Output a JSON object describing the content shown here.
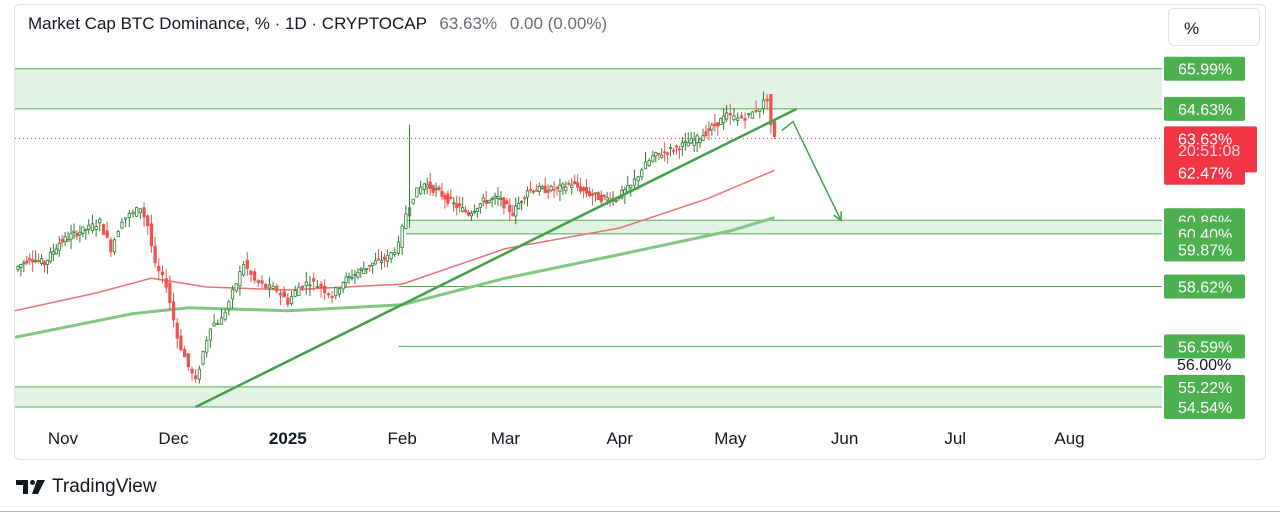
{
  "header": {
    "title": "Market Cap BTC Dominance, % · 1D · CRYPTOCAP",
    "price": "63.63%",
    "change": "0.00 (0.00%)"
  },
  "scale_button": "%",
  "brand": "TradingView",
  "colors": {
    "zone_fill": "#e3f3e3",
    "zone_line": "#4caf50",
    "candle_up": "#26a69a",
    "candle_down": "#ef5350",
    "candle_dark": "#2e7d32",
    "trendline": "#43a047",
    "ma_red": "#e57373",
    "ma_green": "#81c784",
    "label_green": "#4caf50",
    "label_red": "#f23645"
  },
  "chart_data": {
    "type": "line",
    "symbol": "BTC.D",
    "timeframe": "1D",
    "x_ticks": [
      "Nov",
      "Dec",
      "2025",
      "Feb",
      "Mar",
      "Apr",
      "May",
      "Jun",
      "Jul",
      "Aug"
    ],
    "xlim": [
      "2024-10-19",
      "2025-08-25"
    ],
    "ylim": [
      54.1,
      67.3
    ],
    "price_labels": [
      {
        "text": "65.99%",
        "value": 65.99,
        "style": "green"
      },
      {
        "text": "64.63%",
        "value": 64.63,
        "style": "green"
      },
      {
        "text": "63.63%",
        "value": 63.63,
        "style": "red"
      },
      {
        "text": "20:51:08",
        "value": 63.2,
        "style": "red-countdown"
      },
      {
        "text": "62.47%",
        "value": 62.47,
        "style": "red"
      },
      {
        "text": "60.86%",
        "value": 60.86,
        "style": "green"
      },
      {
        "text": "60.40%",
        "value": 60.4,
        "style": "green"
      },
      {
        "text": "59.87%",
        "value": 59.87,
        "style": "green"
      },
      {
        "text": "58.62%",
        "value": 58.62,
        "style": "green"
      },
      {
        "text": "56.59%",
        "value": 56.59,
        "style": "green"
      },
      {
        "text": "56.00%",
        "value": 56.0,
        "style": "plain"
      },
      {
        "text": "55.22%",
        "value": 55.22,
        "style": "green"
      },
      {
        "text": "54.54%",
        "value": 54.54,
        "style": "green"
      }
    ],
    "zones": [
      {
        "from": 64.63,
        "to": 65.99
      },
      {
        "from": 54.54,
        "to": 55.22
      },
      {
        "from": 60.4,
        "to": 60.86,
        "x_start": "2025-02-02"
      }
    ],
    "levels": [
      58.62,
      56.59
    ],
    "current_price": 63.63,
    "btc_dominance": [
      [
        "2024-10-19",
        59.2
      ],
      [
        "2024-10-23",
        59.6
      ],
      [
        "2024-10-27",
        59.4
      ],
      [
        "2024-10-31",
        60.1
      ],
      [
        "2024-11-04",
        60.4
      ],
      [
        "2024-11-08",
        60.6
      ],
      [
        "2024-11-11",
        60.8
      ],
      [
        "2024-11-14",
        59.9
      ],
      [
        "2024-11-17",
        60.9
      ],
      [
        "2024-11-20",
        61.1
      ],
      [
        "2024-11-22",
        61.3
      ],
      [
        "2024-11-24",
        60.7
      ],
      [
        "2024-11-26",
        59.3
      ],
      [
        "2024-11-29",
        58.7
      ],
      [
        "2024-12-02",
        56.9
      ],
      [
        "2024-12-05",
        55.9
      ],
      [
        "2024-12-07",
        55.4
      ],
      [
        "2024-12-09",
        56.4
      ],
      [
        "2024-12-11",
        57.3
      ],
      [
        "2024-12-14",
        57.5
      ],
      [
        "2024-12-17",
        58.4
      ],
      [
        "2024-12-20",
        59.4
      ],
      [
        "2024-12-23",
        58.8
      ],
      [
        "2024-12-26",
        58.6
      ],
      [
        "2024-12-29",
        58.5
      ],
      [
        "2025-01-01",
        58.1
      ],
      [
        "2025-01-04",
        58.6
      ],
      [
        "2025-01-07",
        58.8
      ],
      [
        "2025-01-10",
        58.6
      ],
      [
        "2025-01-13",
        58.3
      ],
      [
        "2025-01-16",
        58.8
      ],
      [
        "2025-01-20",
        59.1
      ],
      [
        "2025-01-24",
        59.4
      ],
      [
        "2025-01-28",
        59.6
      ],
      [
        "2025-01-31",
        60.0
      ],
      [
        "2025-02-02",
        61.1
      ],
      [
        "2025-02-04",
        61.7
      ],
      [
        "2025-02-07",
        62.1
      ],
      [
        "2025-02-11",
        61.8
      ],
      [
        "2025-02-15",
        61.4
      ],
      [
        "2025-02-19",
        61.1
      ],
      [
        "2025-02-23",
        61.5
      ],
      [
        "2025-02-27",
        61.6
      ],
      [
        "2025-03-03",
        61.1
      ],
      [
        "2025-03-07",
        61.9
      ],
      [
        "2025-03-11",
        61.9
      ],
      [
        "2025-03-15",
        61.9
      ],
      [
        "2025-03-19",
        62.1
      ],
      [
        "2025-03-23",
        61.8
      ],
      [
        "2025-03-27",
        61.6
      ],
      [
        "2025-03-31",
        61.6
      ],
      [
        "2025-04-04",
        62.0
      ],
      [
        "2025-04-07",
        62.6
      ],
      [
        "2025-04-10",
        63.0
      ],
      [
        "2025-04-14",
        63.2
      ],
      [
        "2025-04-18",
        63.4
      ],
      [
        "2025-04-22",
        63.6
      ],
      [
        "2025-04-26",
        64.0
      ],
      [
        "2025-04-30",
        64.4
      ],
      [
        "2025-05-03",
        64.3
      ],
      [
        "2025-05-06",
        64.4
      ],
      [
        "2025-05-09",
        64.7
      ],
      [
        "2025-05-11",
        65.0
      ],
      [
        "2025-05-12",
        64.1
      ],
      [
        "2025-05-13",
        63.63
      ]
    ],
    "ma_red": [
      [
        "2024-10-19",
        57.8
      ],
      [
        "2024-11-10",
        58.4
      ],
      [
        "2024-11-25",
        58.9
      ],
      [
        "2024-12-10",
        58.6
      ],
      [
        "2025-01-01",
        58.5
      ],
      [
        "2025-02-01",
        58.7
      ],
      [
        "2025-03-01",
        59.9
      ],
      [
        "2025-04-01",
        60.6
      ],
      [
        "2025-04-25",
        61.6
      ],
      [
        "2025-05-13",
        62.55
      ]
    ],
    "ma_green": [
      [
        "2024-10-19",
        56.9
      ],
      [
        "2024-11-20",
        57.7
      ],
      [
        "2024-12-05",
        57.9
      ],
      [
        "2025-01-01",
        57.8
      ],
      [
        "2025-02-01",
        58.0
      ],
      [
        "2025-03-01",
        58.9
      ],
      [
        "2025-04-01",
        59.7
      ],
      [
        "2025-05-01",
        60.5
      ],
      [
        "2025-05-13",
        60.95
      ]
    ],
    "trendline": [
      [
        "2024-12-07",
        54.54
      ],
      [
        "2025-05-19",
        64.63
      ]
    ],
    "projection": [
      [
        "2025-05-15",
        63.9
      ],
      [
        "2025-05-18",
        64.2
      ],
      [
        "2025-05-31",
        60.86
      ]
    ]
  }
}
